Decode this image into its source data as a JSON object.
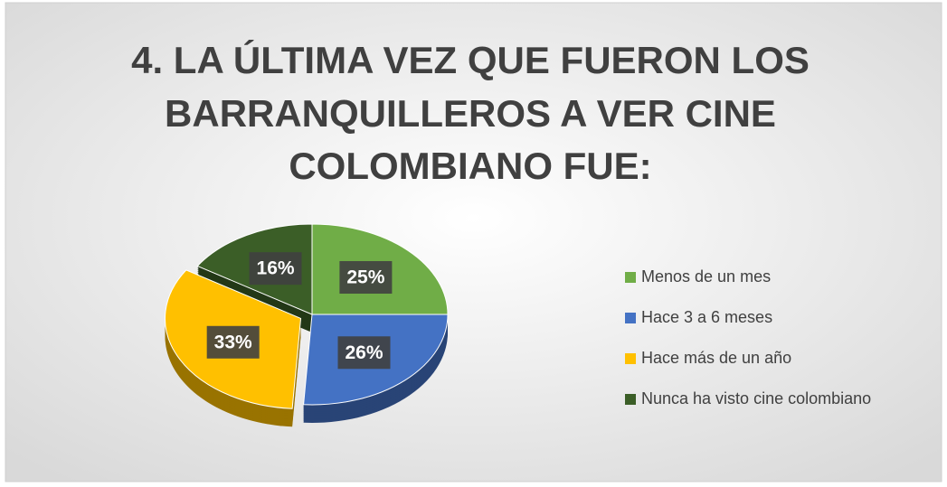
{
  "chart_data": {
    "type": "pie",
    "title": [
      "4. LA ÚLTIMA VEZ QUE FUERON LOS",
      "BARRANQUILLEROS A VER CINE",
      "COLOMBIANO FUE:"
    ],
    "categories": [
      "Menos de un mes",
      "Hace 3 a 6 meses",
      "Hace más de un año",
      "Nunca ha visto cine colombiano"
    ],
    "values": [
      25,
      26,
      33,
      16
    ],
    "value_labels": [
      "25%",
      "26%",
      "33%",
      "16%"
    ],
    "colors": [
      "#70ad47",
      "#4472c4",
      "#ffc000",
      "#3b5e27"
    ],
    "explode": [
      false,
      false,
      true,
      false
    ],
    "legend": "right"
  }
}
